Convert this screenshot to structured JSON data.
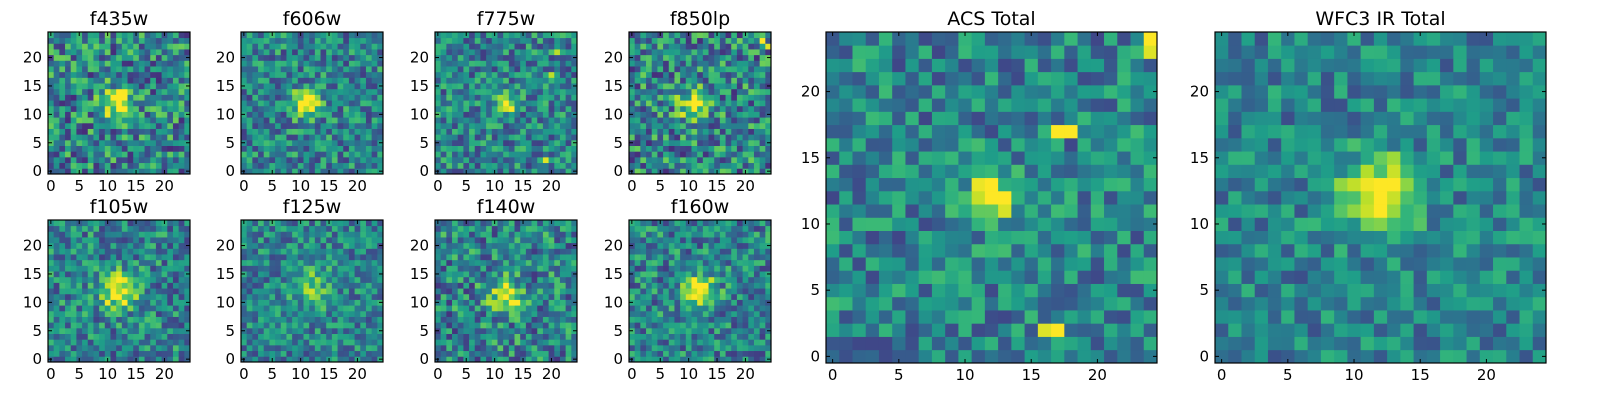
{
  "chart_data": [
    {
      "type": "heatmap",
      "title": "f435w",
      "grid_size": 25,
      "xticks": [
        "0",
        "5",
        "10",
        "15",
        "20"
      ],
      "yticks": [
        "0",
        "5",
        "10",
        "15",
        "20"
      ],
      "seed": 11,
      "noise": 0.55,
      "blob": {
        "x": 12,
        "y": 12,
        "amplitude": 0.55,
        "sigma": 2.0
      },
      "spots": [],
      "colormap": "viridis"
    },
    {
      "type": "heatmap",
      "title": "f606w",
      "grid_size": 25,
      "xticks": [
        "0",
        "5",
        "10",
        "15",
        "20"
      ],
      "yticks": [
        "0",
        "5",
        "10",
        "15",
        "20"
      ],
      "seed": 23,
      "noise": 0.45,
      "blob": {
        "x": 11,
        "y": 12,
        "amplitude": 0.8,
        "sigma": 1.6
      },
      "spots": [],
      "colormap": "viridis"
    },
    {
      "type": "heatmap",
      "title": "f775w",
      "grid_size": 25,
      "xticks": [
        "0",
        "5",
        "10",
        "15",
        "20"
      ],
      "yticks": [
        "0",
        "5",
        "10",
        "15",
        "20"
      ],
      "seed": 37,
      "noise": 0.45,
      "blob": {
        "x": 12,
        "y": 12,
        "amplitude": 0.55,
        "sigma": 1.3
      },
      "spots": [
        {
          "x": 19,
          "y": 2,
          "v": 0.95
        },
        {
          "x": 20,
          "y": 17,
          "v": 0.9
        },
        {
          "x": 21,
          "y": 21,
          "v": 0.9
        }
      ],
      "colormap": "viridis"
    },
    {
      "type": "heatmap",
      "title": "f850lp",
      "grid_size": 25,
      "xticks": [
        "0",
        "5",
        "10",
        "15",
        "20"
      ],
      "yticks": [
        "0",
        "5",
        "10",
        "15",
        "20"
      ],
      "seed": 41,
      "noise": 0.55,
      "blob": {
        "x": 11,
        "y": 12,
        "amplitude": 0.5,
        "sigma": 2.0
      },
      "spots": [
        {
          "x": 23,
          "y": 23,
          "v": 1.0
        },
        {
          "x": 24,
          "y": 22,
          "v": 0.95
        }
      ],
      "colormap": "viridis"
    },
    {
      "type": "heatmap",
      "title": "f105w",
      "grid_size": 25,
      "xticks": [
        "0",
        "5",
        "10",
        "15",
        "20"
      ],
      "yticks": [
        "0",
        "5",
        "10",
        "15",
        "20"
      ],
      "seed": 53,
      "noise": 0.45,
      "blob": {
        "x": 12,
        "y": 12,
        "amplitude": 0.6,
        "sigma": 2.2
      },
      "spots": [],
      "colormap": "viridis"
    },
    {
      "type": "heatmap",
      "title": "f125w",
      "grid_size": 25,
      "xticks": [
        "0",
        "5",
        "10",
        "15",
        "20"
      ],
      "yticks": [
        "0",
        "5",
        "10",
        "15",
        "20"
      ],
      "seed": 67,
      "noise": 0.4,
      "blob": {
        "x": 12,
        "y": 13,
        "amplitude": 0.3,
        "sigma": 2.5
      },
      "spots": [],
      "colormap": "viridis"
    },
    {
      "type": "heatmap",
      "title": "f140w",
      "grid_size": 25,
      "xticks": [
        "0",
        "5",
        "10",
        "15",
        "20"
      ],
      "yticks": [
        "0",
        "5",
        "10",
        "15",
        "20"
      ],
      "seed": 79,
      "noise": 0.5,
      "blob": {
        "x": 12,
        "y": 11,
        "amplitude": 0.55,
        "sigma": 2.0
      },
      "spots": [],
      "colormap": "viridis"
    },
    {
      "type": "heatmap",
      "title": "f160w",
      "grid_size": 25,
      "xticks": [
        "0",
        "5",
        "10",
        "15",
        "20"
      ],
      "yticks": [
        "0",
        "5",
        "10",
        "15",
        "20"
      ],
      "seed": 83,
      "noise": 0.45,
      "blob": {
        "x": 12,
        "y": 12,
        "amplitude": 0.8,
        "sigma": 1.8
      },
      "spots": [],
      "colormap": "viridis"
    },
    {
      "type": "heatmap",
      "title": "ACS Total",
      "grid_size": 25,
      "xticks": [
        "0",
        "5",
        "10",
        "15",
        "20"
      ],
      "yticks": [
        "0",
        "5",
        "10",
        "15",
        "20"
      ],
      "seed": 97,
      "noise": 0.4,
      "blob": {
        "x": 12,
        "y": 12,
        "amplitude": 0.65,
        "sigma": 1.3
      },
      "spots": [
        {
          "x": 17,
          "y": 17,
          "v": 1.0
        },
        {
          "x": 18,
          "y": 17,
          "v": 1.0
        },
        {
          "x": 16,
          "y": 2,
          "v": 0.95
        },
        {
          "x": 17,
          "y": 2,
          "v": 1.0
        },
        {
          "x": 24,
          "y": 24,
          "v": 1.0
        },
        {
          "x": 24,
          "y": 23,
          "v": 0.95
        }
      ],
      "colormap": "viridis"
    },
    {
      "type": "heatmap",
      "title": "WFC3 IR Total",
      "grid_size": 25,
      "xticks": [
        "0",
        "5",
        "10",
        "15",
        "20"
      ],
      "yticks": [
        "0",
        "5",
        "10",
        "15",
        "20"
      ],
      "seed": 109,
      "noise": 0.35,
      "blob": {
        "x": 12,
        "y": 12,
        "amplitude": 0.7,
        "sigma": 2.0
      },
      "spots": [],
      "colormap": "viridis"
    }
  ]
}
